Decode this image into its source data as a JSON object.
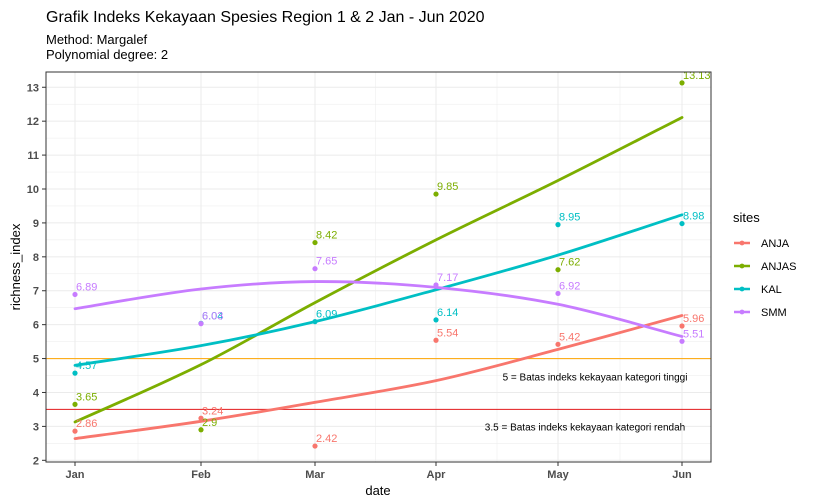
{
  "chart_data": {
    "type": "scatter",
    "title": "Grafik Indeks Kekayaan Spesies Region 1 & 2 Jan - Jun 2020",
    "subtitle_lines": [
      "Method: Margalef",
      "Polynomial degree: 2"
    ],
    "xlabel": "date",
    "ylabel": "richness_index",
    "x_ticks": [
      "Jan",
      "Feb",
      "Mar",
      "Apr",
      "May",
      "Jun"
    ],
    "y_ticks": [
      "2",
      "3",
      "4",
      "5",
      "6",
      "7",
      "8",
      "9",
      "10",
      "11",
      "12",
      "13"
    ],
    "ylim": [
      1.95,
      13.45
    ],
    "grid": true,
    "legend_title": "sites",
    "legend_position": "right",
    "series": [
      {
        "name": "ANJA",
        "color": "#F8766D",
        "points": [
          2.86,
          3.24,
          2.42,
          5.54,
          5.42,
          5.96
        ],
        "fit": [
          2.64,
          3.15,
          3.71,
          4.35,
          5.27,
          6.27
        ]
      },
      {
        "name": "ANJAS",
        "color": "#7CAE00",
        "points": [
          3.65,
          2.9,
          8.42,
          9.85,
          7.62,
          13.13
        ],
        "fit": [
          3.13,
          4.82,
          6.65,
          8.5,
          10.25,
          12.11
        ]
      },
      {
        "name": "KAL",
        "color": "#00BFC4",
        "points": [
          4.57,
          6.04,
          6.09,
          6.14,
          8.95,
          8.98
        ],
        "fit": [
          4.8,
          5.38,
          6.09,
          7.03,
          8.05,
          9.24
        ]
      },
      {
        "name": "SMM",
        "color": "#C77CFF",
        "points": [
          6.89,
          6.03,
          7.65,
          7.17,
          6.92,
          5.51
        ],
        "fit": [
          6.47,
          7.05,
          7.27,
          7.1,
          6.6,
          5.65
        ]
      }
    ],
    "point_labels": [
      [
        "2.86",
        "3.24",
        "2.42",
        "5.54",
        "5.42",
        "5.96"
      ],
      [
        "3.65",
        "2.9",
        "8.42",
        "9.85",
        "7.62",
        "13.13"
      ],
      [
        "4.57",
        "6.04",
        "6.09",
        "6.14",
        "8.95",
        "8.98"
      ],
      [
        "6.89",
        "6.03",
        "7.65",
        "7.17",
        "6.92",
        "5.51"
      ]
    ],
    "hlines": [
      {
        "y": 5,
        "color": "#FFA500",
        "label": "5 = Batas indeks kekayaan kategori tinggi"
      },
      {
        "y": 3.5,
        "color": "#E41A1C",
        "label": "3.5 = Batas indeks kekayaan kategori rendah"
      }
    ]
  }
}
